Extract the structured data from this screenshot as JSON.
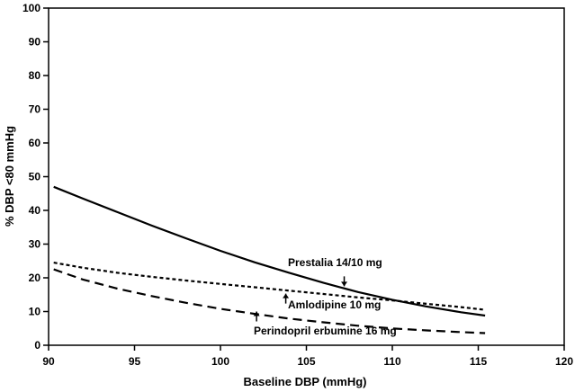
{
  "chart_data": {
    "type": "line",
    "title": "",
    "xlabel": "Baseline DBP (mmHg)",
    "ylabel": "% DBP <80 mmHg",
    "xlim": [
      90,
      120
    ],
    "ylim": [
      0,
      100
    ],
    "x_ticks": [
      90,
      95,
      100,
      105,
      110,
      115,
      120
    ],
    "y_ticks": [
      0,
      10,
      20,
      30,
      40,
      50,
      60,
      70,
      80,
      90,
      100
    ],
    "grid": false,
    "legend": "none",
    "series": [
      {
        "name": "Prestalia 14/10 mg",
        "style": "solid",
        "x": [
          90.3,
          92,
          94,
          96,
          98,
          100,
          102,
          104,
          106,
          108,
          110,
          112,
          114,
          115.4
        ],
        "y": [
          47,
          43.5,
          39.5,
          35.5,
          31.7,
          28,
          24.6,
          21.5,
          18.5,
          15.8,
          13.5,
          11.5,
          9.8,
          8.8
        ]
      },
      {
        "name": "Amlodipine 10 mg",
        "style": "dotted",
        "x": [
          90.3,
          92,
          94,
          96,
          98,
          100,
          102,
          104,
          106,
          108,
          110,
          112,
          114,
          115.4
        ],
        "y": [
          24.5,
          23,
          21.5,
          20.3,
          19.2,
          18.2,
          17.2,
          16.2,
          15.2,
          14.2,
          13.3,
          12.3,
          11.3,
          10.5
        ]
      },
      {
        "name": "Perindopril erbumine 16 mg",
        "style": "dashed",
        "x": [
          90.3,
          92,
          94,
          96,
          98,
          100,
          102,
          104,
          106,
          108,
          110,
          112,
          114,
          115.4
        ],
        "y": [
          22.5,
          19.5,
          16.8,
          14.6,
          12.6,
          10.8,
          9.3,
          7.9,
          6.8,
          5.8,
          5.0,
          4.4,
          3.9,
          3.6
        ]
      }
    ],
    "annotations": [
      {
        "text": "Prestalia 14/10 mg",
        "arrow_x": 107.2,
        "arrow_tip_y": 17.5,
        "direction": "down"
      },
      {
        "text": "Amlodipine 10 mg",
        "arrow_x": 103.8,
        "arrow_tip_y": 15.3,
        "direction": "up"
      },
      {
        "text": "Perindopril erbumine 16 mg",
        "arrow_x": 102.1,
        "arrow_tip_y": 10.0,
        "direction": "up"
      }
    ]
  }
}
